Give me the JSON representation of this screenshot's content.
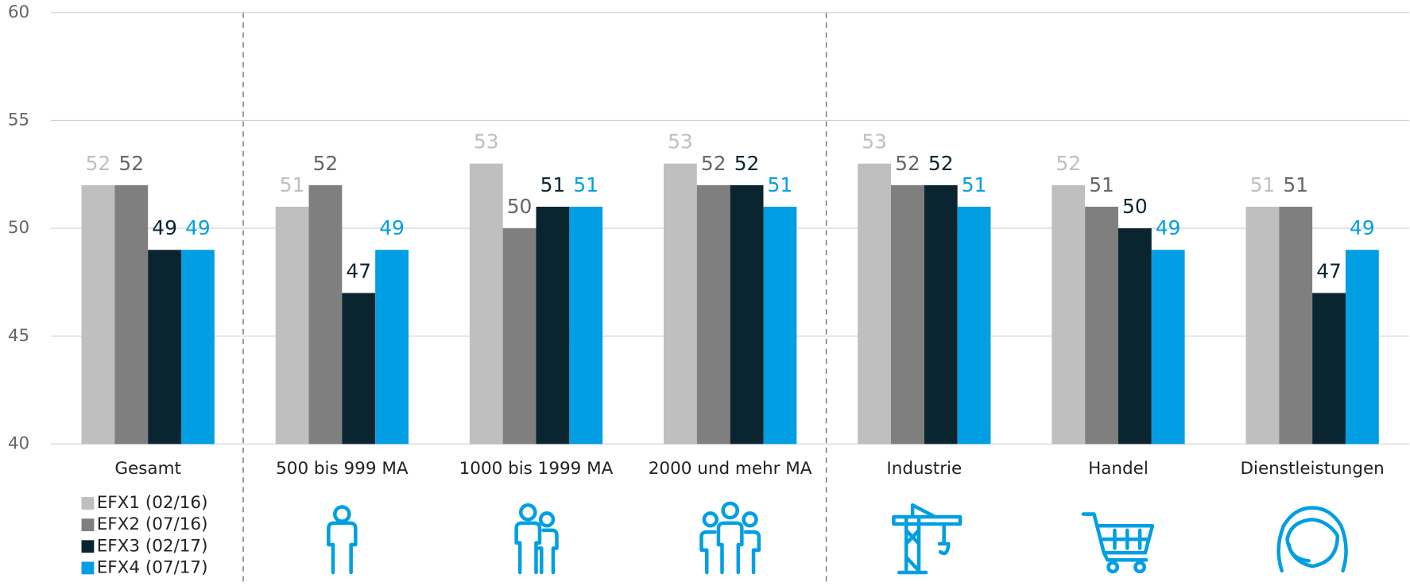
{
  "chart_data": {
    "type": "bar",
    "categories": [
      "Gesamt",
      "500 bis 999 MA",
      "1000 bis 1999 MA",
      "2000 und mehr MA",
      "Industrie",
      "Handel",
      "Dienstleistungen"
    ],
    "series": [
      {
        "name": "EFX1 (02/16)",
        "color": "#bfbfbf",
        "values": [
          52,
          51,
          53,
          53,
          53,
          52,
          51
        ]
      },
      {
        "name": "EFX2 (07/16)",
        "color": "#7f7f7f",
        "values": [
          52,
          52,
          50,
          52,
          52,
          51,
          51
        ]
      },
      {
        "name": "EFX3 (02/17)",
        "color": "#0a2530",
        "values": [
          49,
          47,
          51,
          52,
          52,
          50,
          47
        ]
      },
      {
        "name": "EFX4 (07/17)",
        "color": "#009fe3",
        "values": [
          49,
          49,
          51,
          51,
          51,
          49,
          49
        ]
      }
    ],
    "ylim": [
      40,
      60
    ],
    "yticks": [
      40,
      45,
      50,
      55,
      60
    ],
    "grid": true,
    "legend": "bottom-left"
  }
}
